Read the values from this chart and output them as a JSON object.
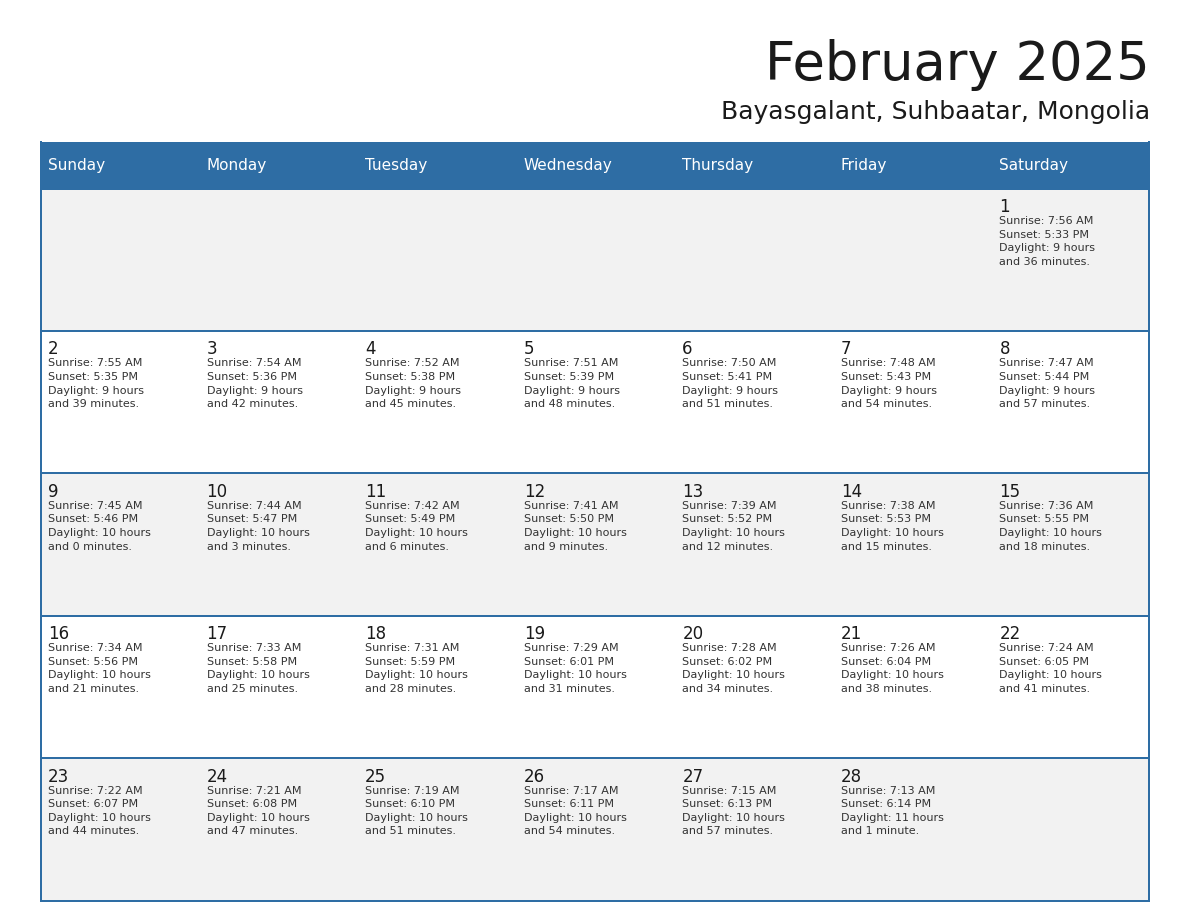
{
  "title": "February 2025",
  "subtitle": "Bayasgalant, Suhbaatar, Mongolia",
  "header_bg": "#2E6DA4",
  "header_text": "#FFFFFF",
  "cell_bg_odd": "#F2F2F2",
  "cell_bg_even": "#FFFFFF",
  "text_color": "#333333",
  "border_color": "#2E6DA4",
  "days_of_week": [
    "Sunday",
    "Monday",
    "Tuesday",
    "Wednesday",
    "Thursday",
    "Friday",
    "Saturday"
  ],
  "weeks": [
    [
      {
        "day": "",
        "info": ""
      },
      {
        "day": "",
        "info": ""
      },
      {
        "day": "",
        "info": ""
      },
      {
        "day": "",
        "info": ""
      },
      {
        "day": "",
        "info": ""
      },
      {
        "day": "",
        "info": ""
      },
      {
        "day": "1",
        "info": "Sunrise: 7:56 AM\nSunset: 5:33 PM\nDaylight: 9 hours\nand 36 minutes."
      }
    ],
    [
      {
        "day": "2",
        "info": "Sunrise: 7:55 AM\nSunset: 5:35 PM\nDaylight: 9 hours\nand 39 minutes."
      },
      {
        "day": "3",
        "info": "Sunrise: 7:54 AM\nSunset: 5:36 PM\nDaylight: 9 hours\nand 42 minutes."
      },
      {
        "day": "4",
        "info": "Sunrise: 7:52 AM\nSunset: 5:38 PM\nDaylight: 9 hours\nand 45 minutes."
      },
      {
        "day": "5",
        "info": "Sunrise: 7:51 AM\nSunset: 5:39 PM\nDaylight: 9 hours\nand 48 minutes."
      },
      {
        "day": "6",
        "info": "Sunrise: 7:50 AM\nSunset: 5:41 PM\nDaylight: 9 hours\nand 51 minutes."
      },
      {
        "day": "7",
        "info": "Sunrise: 7:48 AM\nSunset: 5:43 PM\nDaylight: 9 hours\nand 54 minutes."
      },
      {
        "day": "8",
        "info": "Sunrise: 7:47 AM\nSunset: 5:44 PM\nDaylight: 9 hours\nand 57 minutes."
      }
    ],
    [
      {
        "day": "9",
        "info": "Sunrise: 7:45 AM\nSunset: 5:46 PM\nDaylight: 10 hours\nand 0 minutes."
      },
      {
        "day": "10",
        "info": "Sunrise: 7:44 AM\nSunset: 5:47 PM\nDaylight: 10 hours\nand 3 minutes."
      },
      {
        "day": "11",
        "info": "Sunrise: 7:42 AM\nSunset: 5:49 PM\nDaylight: 10 hours\nand 6 minutes."
      },
      {
        "day": "12",
        "info": "Sunrise: 7:41 AM\nSunset: 5:50 PM\nDaylight: 10 hours\nand 9 minutes."
      },
      {
        "day": "13",
        "info": "Sunrise: 7:39 AM\nSunset: 5:52 PM\nDaylight: 10 hours\nand 12 minutes."
      },
      {
        "day": "14",
        "info": "Sunrise: 7:38 AM\nSunset: 5:53 PM\nDaylight: 10 hours\nand 15 minutes."
      },
      {
        "day": "15",
        "info": "Sunrise: 7:36 AM\nSunset: 5:55 PM\nDaylight: 10 hours\nand 18 minutes."
      }
    ],
    [
      {
        "day": "16",
        "info": "Sunrise: 7:34 AM\nSunset: 5:56 PM\nDaylight: 10 hours\nand 21 minutes."
      },
      {
        "day": "17",
        "info": "Sunrise: 7:33 AM\nSunset: 5:58 PM\nDaylight: 10 hours\nand 25 minutes."
      },
      {
        "day": "18",
        "info": "Sunrise: 7:31 AM\nSunset: 5:59 PM\nDaylight: 10 hours\nand 28 minutes."
      },
      {
        "day": "19",
        "info": "Sunrise: 7:29 AM\nSunset: 6:01 PM\nDaylight: 10 hours\nand 31 minutes."
      },
      {
        "day": "20",
        "info": "Sunrise: 7:28 AM\nSunset: 6:02 PM\nDaylight: 10 hours\nand 34 minutes."
      },
      {
        "day": "21",
        "info": "Sunrise: 7:26 AM\nSunset: 6:04 PM\nDaylight: 10 hours\nand 38 minutes."
      },
      {
        "day": "22",
        "info": "Sunrise: 7:24 AM\nSunset: 6:05 PM\nDaylight: 10 hours\nand 41 minutes."
      }
    ],
    [
      {
        "day": "23",
        "info": "Sunrise: 7:22 AM\nSunset: 6:07 PM\nDaylight: 10 hours\nand 44 minutes."
      },
      {
        "day": "24",
        "info": "Sunrise: 7:21 AM\nSunset: 6:08 PM\nDaylight: 10 hours\nand 47 minutes."
      },
      {
        "day": "25",
        "info": "Sunrise: 7:19 AM\nSunset: 6:10 PM\nDaylight: 10 hours\nand 51 minutes."
      },
      {
        "day": "26",
        "info": "Sunrise: 7:17 AM\nSunset: 6:11 PM\nDaylight: 10 hours\nand 54 minutes."
      },
      {
        "day": "27",
        "info": "Sunrise: 7:15 AM\nSunset: 6:13 PM\nDaylight: 10 hours\nand 57 minutes."
      },
      {
        "day": "28",
        "info": "Sunrise: 7:13 AM\nSunset: 6:14 PM\nDaylight: 11 hours\nand 1 minute."
      },
      {
        "day": "",
        "info": ""
      }
    ]
  ],
  "logo_color_general": "#1a1a1a",
  "logo_color_blue": "#2479BD"
}
